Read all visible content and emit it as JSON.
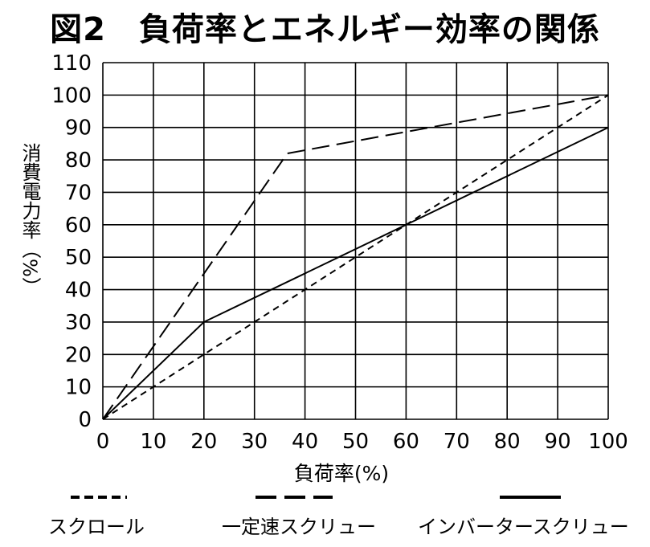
{
  "chart_data": {
    "type": "line",
    "title": "図2　負荷率とエネルギー効率の関係",
    "xlabel": "負荷率(%)",
    "ylabel": "消費電力率（%）",
    "xlim": [
      0,
      100
    ],
    "ylim": [
      0,
      110
    ],
    "x_ticks": [
      "0",
      "10",
      "20",
      "30",
      "40",
      "50",
      "60",
      "70",
      "80",
      "90",
      "100"
    ],
    "y_ticks": [
      "0",
      "10",
      "20",
      "30",
      "40",
      "50",
      "60",
      "70",
      "80",
      "90",
      "100",
      "110"
    ],
    "grid": true,
    "legend_position": "bottom",
    "series": [
      {
        "name": "スクロール",
        "dash": "short-dash",
        "x": [
          0,
          100
        ],
        "y": [
          0,
          100
        ]
      },
      {
        "name": "一定速スクリュー",
        "dash": "long-dash",
        "x": [
          0,
          36.5,
          100
        ],
        "y": [
          0,
          82,
          100
        ]
      },
      {
        "name": "インバータースクリュー",
        "dash": "solid",
        "x": [
          0,
          20,
          100
        ],
        "y": [
          0,
          30,
          90
        ]
      }
    ]
  }
}
